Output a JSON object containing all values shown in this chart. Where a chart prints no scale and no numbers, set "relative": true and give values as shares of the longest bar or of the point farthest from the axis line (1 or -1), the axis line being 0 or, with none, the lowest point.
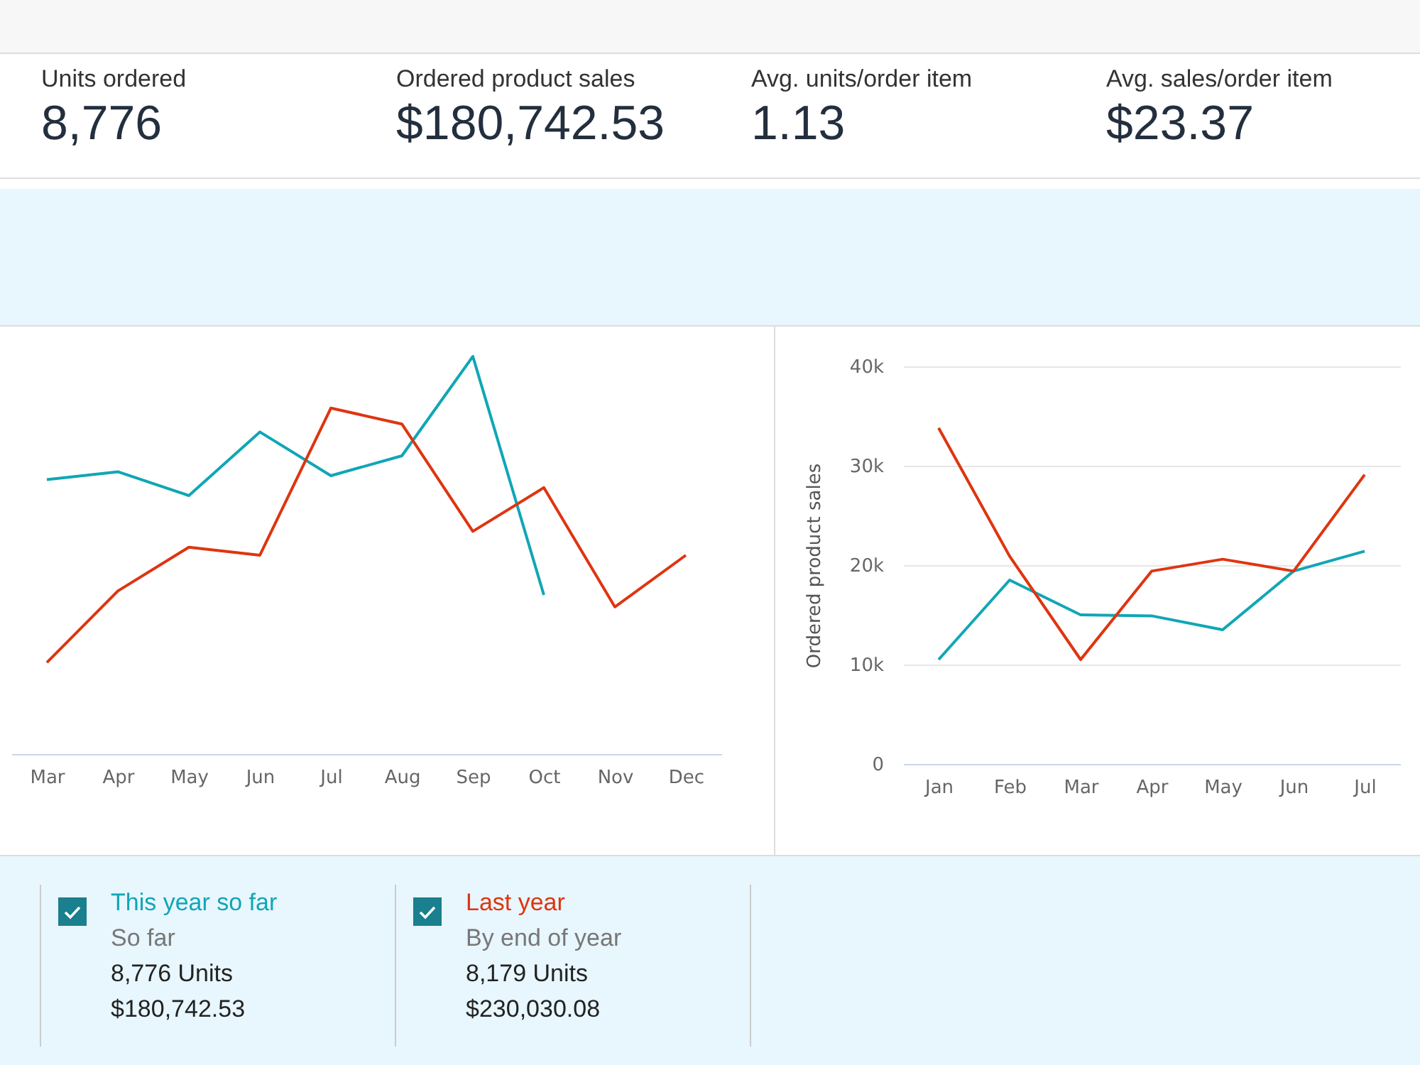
{
  "chart_data": [
    {
      "type": "other",
      "annotations": [
        "Units ordered",
        "8,776",
        "Ordered product sales",
        "$180,742.53",
        "Avg. units/order item",
        "1.13",
        "Avg. sales/order item",
        "$23.37"
      ]
    },
    {
      "type": "line",
      "relative": true,
      "categories": [
        "Mar",
        "Apr",
        "May",
        "Jun",
        "Jul",
        "Aug",
        "Sep",
        "Oct",
        "Nov",
        "Dec"
      ],
      "series": [
        {
          "color": "#10a6b6",
          "values": [
            0.69,
            0.71,
            0.65,
            0.81,
            0.7,
            0.75,
            1,
            0.4,
            null,
            null
          ]
        },
        {
          "color": "#de3510",
          "values": [
            0.23,
            0.41,
            0.52,
            0.5,
            0.87,
            0.83,
            0.56,
            0.67,
            0.37,
            0.5
          ]
        }
      ]
    },
    {
      "type": "line",
      "ylabel": "Ordered product sales",
      "grid": "y",
      "legend": "bottom",
      "categories": [
        "Jan",
        "Feb",
        "Mar",
        "Apr",
        "May",
        "Jun",
        "Jul"
      ],
      "ylim": [
        0,
        40000
      ],
      "yticks": [
        0,
        {
          "value": 10000,
          "label": "10k"
        },
        {
          "value": 20000,
          "label": "20k"
        },
        {
          "value": 30000,
          "label": "30k"
        },
        {
          "value": 40000,
          "label": "40k"
        }
      ],
      "series": [
        {
          "name": "This year so far",
          "color": "#10a6b6",
          "values": [
            10500,
            18500,
            15000,
            14900,
            13500,
            19400,
            21400
          ]
        },
        {
          "name": "Last year",
          "color": "#de3510",
          "values": [
            33800,
            20900,
            10500,
            19400,
            20600,
            19400,
            29100
          ]
        }
      ],
      "annotations": [
        "So far",
        "8,776 Units",
        "$180,742.53",
        "By end of year",
        "8,179 Units",
        "$230,030.08"
      ]
    }
  ]
}
